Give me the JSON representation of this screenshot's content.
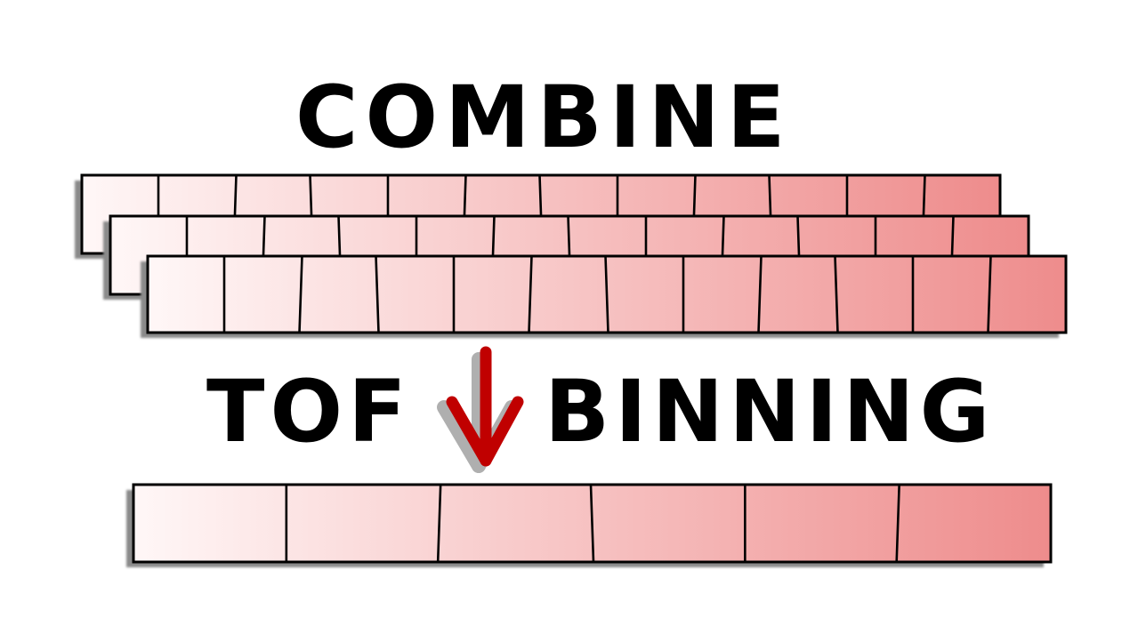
{
  "labels": {
    "combine": "COMBINE",
    "tof": "TOF",
    "binning": "BINNING"
  },
  "strips": {
    "input_bin_count": 12,
    "input_strip_count": 3,
    "output_bin_count": 6,
    "gradient_start_color": "#fff7f7",
    "gradient_end_color": "#ee8c8c",
    "shadow_color": "#8a8a8a",
    "stroke_color": "#000000"
  },
  "arrow": {
    "icon": "down-arrow-icon",
    "color": "#c00000"
  }
}
